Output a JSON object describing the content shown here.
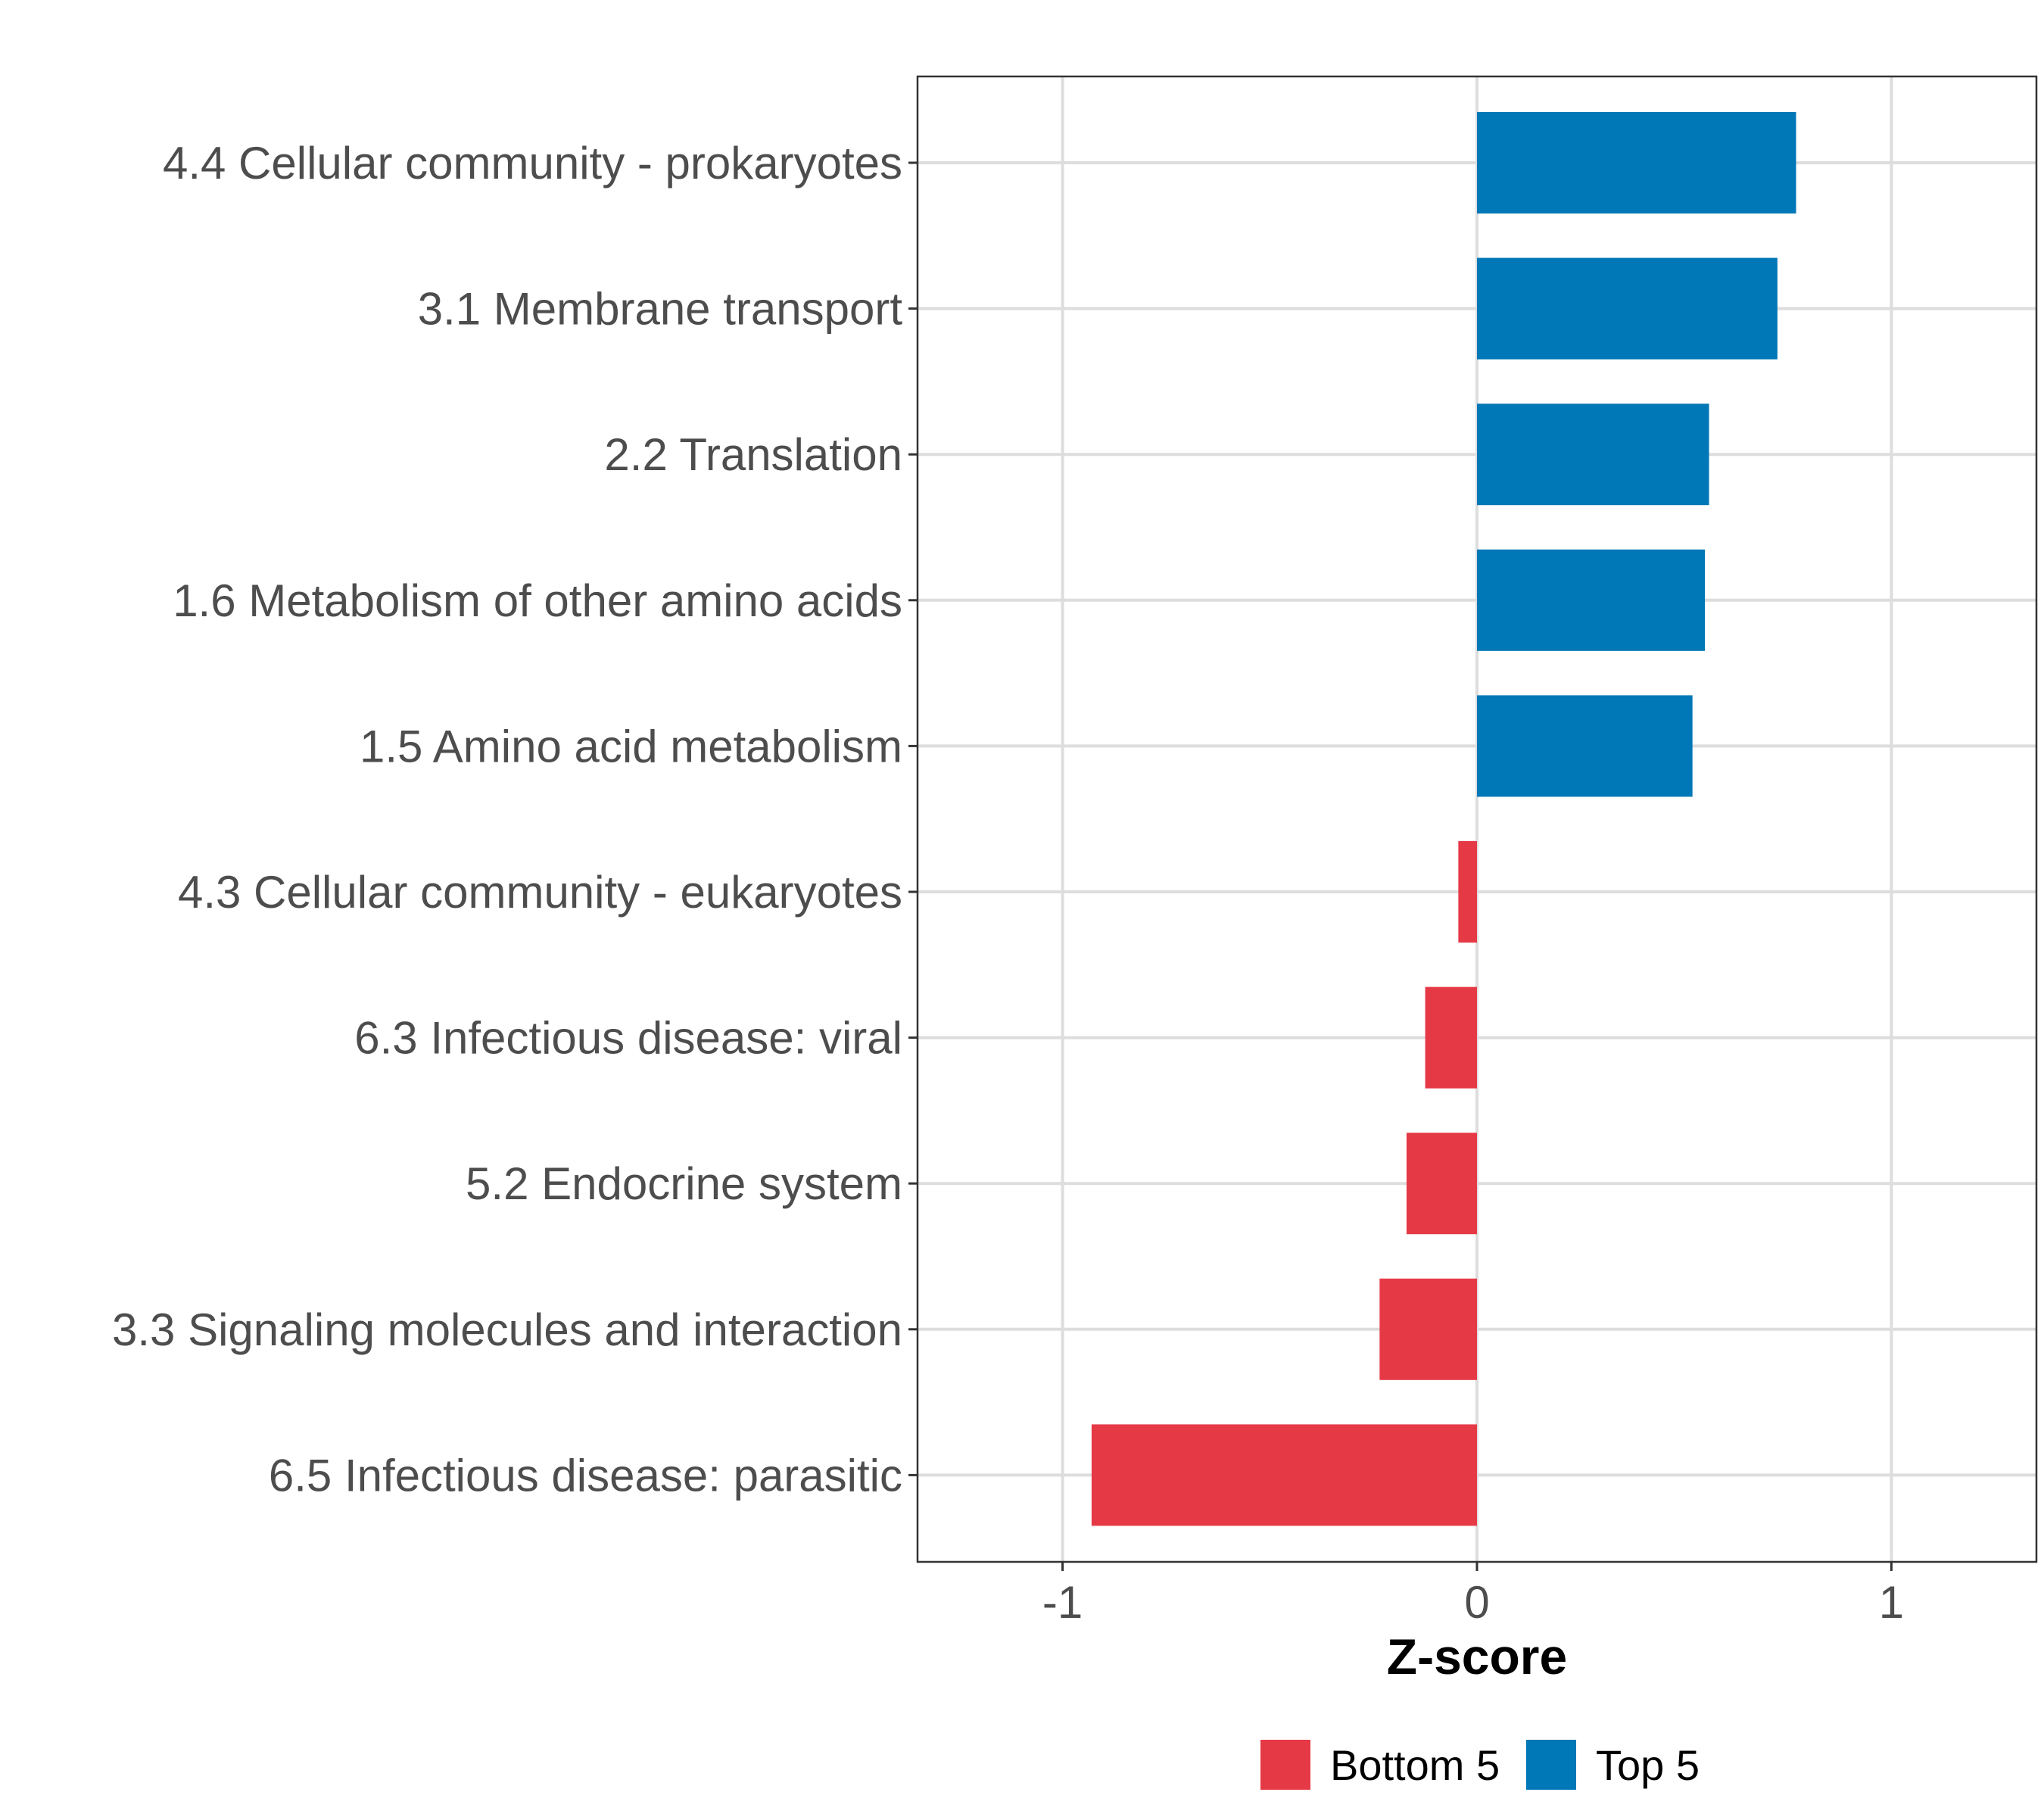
{
  "chart_data": {
    "type": "bar",
    "orientation": "horizontal",
    "title": "",
    "xlabel": "Z-score",
    "ylabel": "",
    "xlim": [
      -1.35,
      1.35
    ],
    "x_ticks": [
      {
        "value": -1,
        "label": "-1"
      },
      {
        "value": 0,
        "label": "0"
      },
      {
        "value": 1,
        "label": "1"
      }
    ],
    "grid": true,
    "legend_position": "bottom",
    "groups": [
      {
        "name": "Bottom 5",
        "color": "#E63946"
      },
      {
        "name": "Top 5",
        "color": "#0077B6"
      }
    ],
    "bars": [
      {
        "category": "4.4 Cellular community - prokaryotes",
        "value": 0.77,
        "group": "Top 5"
      },
      {
        "category": "3.1 Membrane transport",
        "value": 0.725,
        "group": "Top 5"
      },
      {
        "category": "2.2 Translation",
        "value": 0.56,
        "group": "Top 5"
      },
      {
        "category": "1.6 Metabolism of other amino acids",
        "value": 0.55,
        "group": "Top 5"
      },
      {
        "category": "1.5 Amino acid metabolism",
        "value": 0.52,
        "group": "Top 5"
      },
      {
        "category": "4.3 Cellular community - eukaryotes",
        "value": -0.045,
        "group": "Bottom 5"
      },
      {
        "category": "6.3 Infectious disease: viral",
        "value": -0.125,
        "group": "Bottom 5"
      },
      {
        "category": "5.2 Endocrine system",
        "value": -0.17,
        "group": "Bottom 5"
      },
      {
        "category": "3.3 Signaling molecules and interaction",
        "value": -0.235,
        "group": "Bottom 5"
      },
      {
        "category": "6.5 Infectious disease: parasitic",
        "value": -0.93,
        "group": "Bottom 5"
      }
    ]
  }
}
